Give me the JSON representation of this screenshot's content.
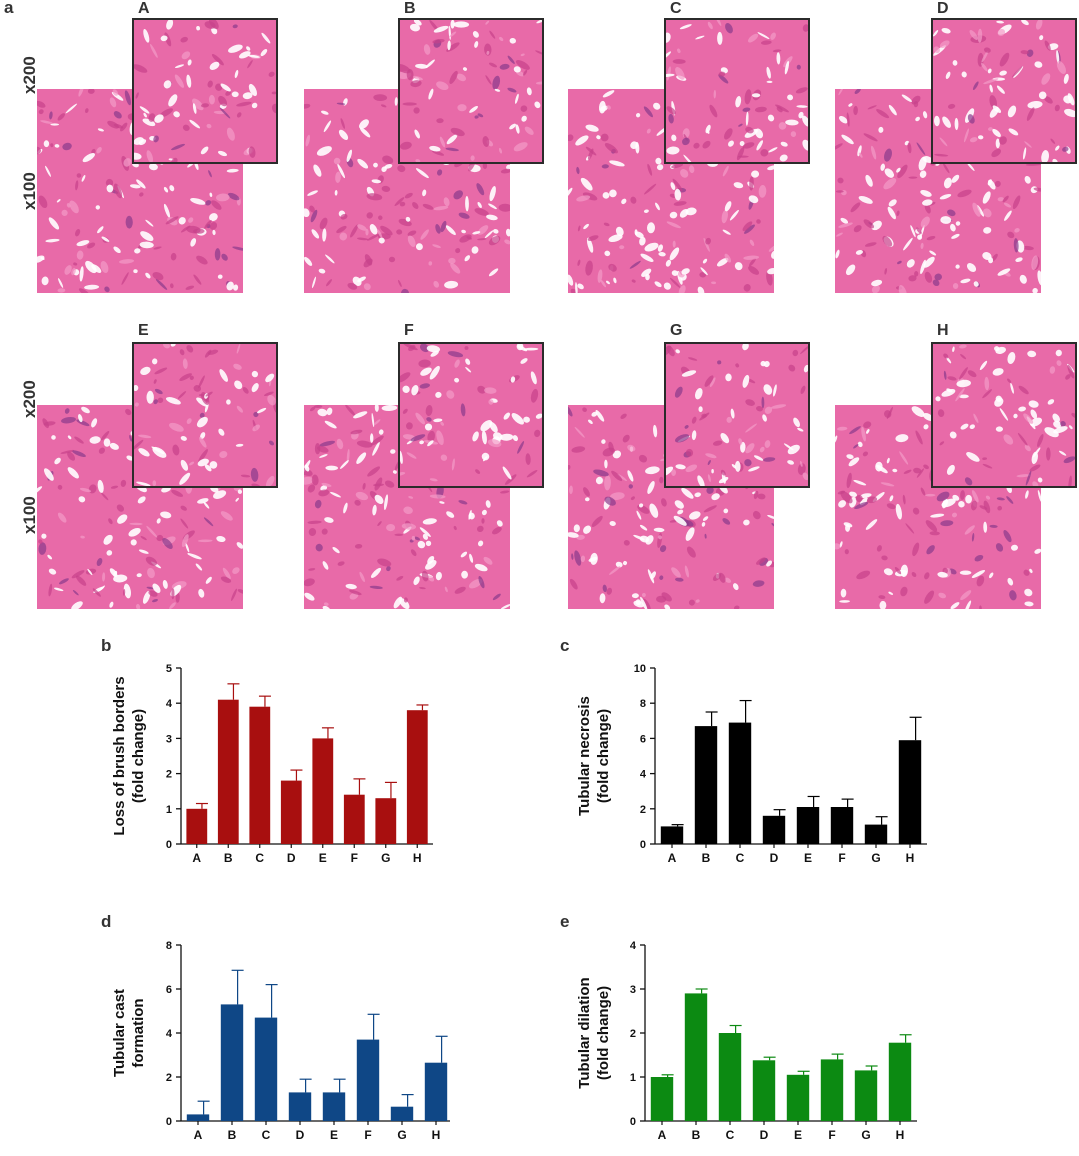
{
  "figure": {
    "panel_a_label": "a",
    "panel_b_label": "b",
    "panel_c_label": "c",
    "panel_d_label": "d",
    "panel_e_label": "e",
    "mag_high": "x200",
    "mag_low": "x100",
    "micrographs": [
      {
        "label": "A"
      },
      {
        "label": "B"
      },
      {
        "label": "C"
      },
      {
        "label": "D"
      },
      {
        "label": "E"
      },
      {
        "label": "F"
      },
      {
        "label": "G"
      },
      {
        "label": "H"
      }
    ]
  },
  "chart_data": [
    {
      "type": "bar",
      "panel": "b",
      "ylabel": "Loss of brush borders (fold change)",
      "ylabel_lines": [
        "Loss of brush borders",
        "(fold change)"
      ],
      "categories": [
        "A",
        "B",
        "C",
        "D",
        "E",
        "F",
        "G",
        "H"
      ],
      "values": [
        1.0,
        4.1,
        3.9,
        1.8,
        3.0,
        1.4,
        1.3,
        3.8
      ],
      "errors": [
        0.15,
        0.45,
        0.3,
        0.3,
        0.3,
        0.45,
        0.45,
        0.15
      ],
      "ylim": [
        0,
        5
      ],
      "yticks": [
        0,
        1,
        2,
        3,
        4,
        5
      ],
      "color": "#a80f0f"
    },
    {
      "type": "bar",
      "panel": "c",
      "ylabel": "Tubular necrosis (fold change)",
      "ylabel_lines": [
        "Tubular necrosis",
        "(fold change)"
      ],
      "categories": [
        "A",
        "B",
        "C",
        "D",
        "E",
        "F",
        "G",
        "H"
      ],
      "values": [
        1.0,
        6.7,
        6.9,
        1.6,
        2.1,
        2.1,
        1.1,
        5.9
      ],
      "errors": [
        0.1,
        0.8,
        1.25,
        0.35,
        0.6,
        0.45,
        0.45,
        1.3
      ],
      "ylim": [
        0,
        10
      ],
      "yticks": [
        0,
        2,
        4,
        6,
        8,
        10
      ],
      "color": "#000000"
    },
    {
      "type": "bar",
      "panel": "d",
      "ylabel": "Tubular cast formation",
      "ylabel_lines": [
        "Tubular cast",
        "formation"
      ],
      "categories": [
        "A",
        "B",
        "C",
        "D",
        "E",
        "F",
        "G",
        "H"
      ],
      "values": [
        0.3,
        5.3,
        4.7,
        1.3,
        1.3,
        3.7,
        0.65,
        2.65
      ],
      "errors": [
        0.6,
        1.55,
        1.5,
        0.6,
        0.6,
        1.15,
        0.55,
        1.2
      ],
      "ylim": [
        0,
        8
      ],
      "yticks": [
        0,
        2,
        4,
        6,
        8
      ],
      "color": "#0f4786"
    },
    {
      "type": "bar",
      "panel": "e",
      "ylabel": "Tubular dilation (fold change)",
      "ylabel_lines": [
        "Tubular dilation",
        "(fold change)"
      ],
      "categories": [
        "A",
        "B",
        "C",
        "D",
        "E",
        "F",
        "G",
        "H"
      ],
      "values": [
        1.0,
        2.9,
        2.0,
        1.38,
        1.05,
        1.4,
        1.15,
        1.78
      ],
      "errors": [
        0.05,
        0.1,
        0.17,
        0.07,
        0.08,
        0.12,
        0.1,
        0.18
      ],
      "ylim": [
        0,
        4
      ],
      "yticks": [
        0,
        1,
        2,
        3,
        4
      ],
      "color": "#0c8a12"
    }
  ]
}
